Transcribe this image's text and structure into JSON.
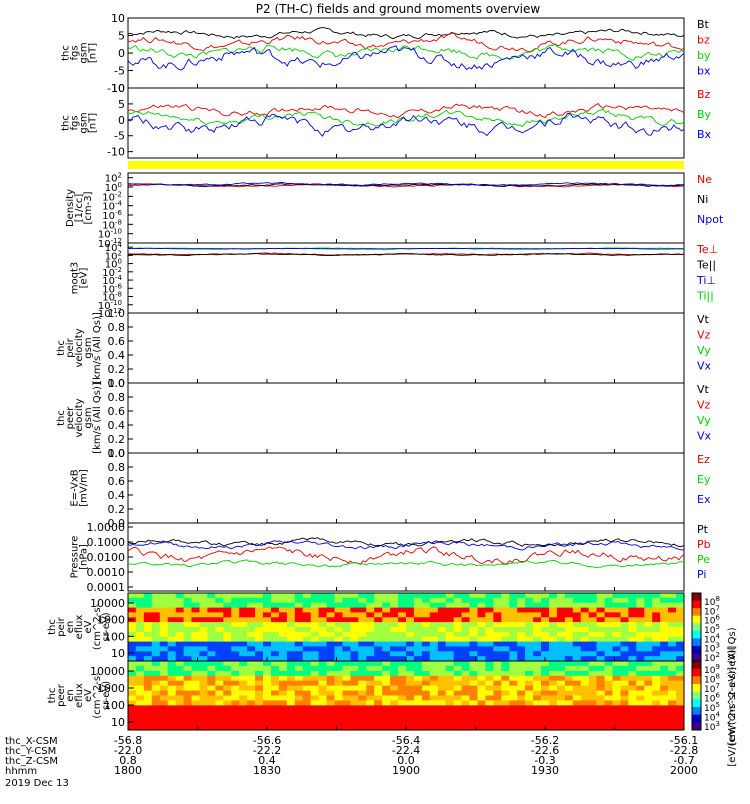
{
  "title": "P2 (TH-C) fields and ground moments overview",
  "colors": {
    "black": "#000000",
    "red": "#e00000",
    "green": "#00d000",
    "blue": "#0000e0",
    "yellow": "#ffff00",
    "axis": "#000000"
  },
  "chart_data": [
    {
      "id": "fgs",
      "type": "line",
      "ylabel": [
        "thc",
        "fgs",
        "gsm",
        "[nT]"
      ],
      "ylim": [
        -10,
        10
      ],
      "yticks": [
        10,
        5,
        0,
        -5,
        -10
      ],
      "legend": [
        {
          "label": "Bt",
          "color": "#000000"
        },
        {
          "label": "bz",
          "color": "#e00000"
        },
        {
          "label": "by",
          "color": "#00d000"
        },
        {
          "label": "bx",
          "color": "#0000e0"
        }
      ],
      "series": [
        {
          "name": "Bt",
          "color": "#000000",
          "base": 5.5,
          "amp": 1.4
        },
        {
          "name": "bz",
          "color": "#e00000",
          "base": 3.0,
          "amp": 2.0
        },
        {
          "name": "by",
          "color": "#00d000",
          "base": 0.5,
          "amp": 2.2
        },
        {
          "name": "bx",
          "color": "#0000e0",
          "base": -1.5,
          "amp": 3.2
        }
      ]
    },
    {
      "id": "fgs_gsm",
      "type": "line",
      "ylabel": [
        "thc",
        "fgs",
        "gsm",
        "[nT]"
      ],
      "ylim": [
        -12,
        10
      ],
      "yticks": [
        10,
        5,
        0,
        -5,
        -10
      ],
      "legend": [
        {
          "label": "Bz",
          "color": "#e00000"
        },
        {
          "label": "By",
          "color": "#00d000"
        },
        {
          "label": "Bx",
          "color": "#0000e0"
        }
      ],
      "series": [
        {
          "name": "Bz",
          "color": "#e00000",
          "base": 3.0,
          "amp": 2.0
        },
        {
          "name": "By",
          "color": "#00d000",
          "base": 0.5,
          "amp": 2.2
        },
        {
          "name": "Bx",
          "color": "#0000e0",
          "base": -1.5,
          "amp": 3.5
        }
      ]
    },
    {
      "id": "density",
      "type": "line",
      "log": true,
      "ylabel": [
        "Density",
        "[1/cc]",
        "[cm-3]"
      ],
      "ylim_exp": [
        -12,
        3
      ],
      "yticks_exp": [
        2,
        0,
        -2,
        -4,
        -6,
        -8,
        -10,
        -12
      ],
      "legend": [
        {
          "label": "Ne",
          "color": "#e00000"
        },
        {
          "label": "Ni",
          "color": "#000000"
        },
        {
          "label": "Npot",
          "color": "#0000e0"
        }
      ],
      "series": [
        {
          "name": "Ne",
          "color": "#e00000",
          "base": 0.3,
          "amp": 0.3
        },
        {
          "name": "Ni",
          "color": "#000000",
          "base": 0.4,
          "amp": 0.3
        },
        {
          "name": "Npot",
          "color": "#0000e0",
          "base": 0.6,
          "amp": 0.3
        }
      ]
    },
    {
      "id": "temp",
      "type": "line",
      "log": true,
      "ylabel": [
        "moqt3",
        "[eV]"
      ],
      "ylim_exp": [
        -12,
        5
      ],
      "yticks_exp": [
        4,
        2,
        0,
        -2,
        -4,
        -6,
        -8,
        -10,
        -12
      ],
      "legend": [
        {
          "label": "Te⊥",
          "color": "#e00000"
        },
        {
          "label": "Te||",
          "color": "#000000"
        },
        {
          "label": "Ti⊥",
          "color": "#0000e0"
        },
        {
          "label": "Ti||",
          "color": "#00d000"
        }
      ],
      "series": [
        {
          "name": "Ti||",
          "color": "#00d000",
          "base": 3.7,
          "amp": 0.1
        },
        {
          "name": "Ti⊥",
          "color": "#0000e0",
          "base": 3.6,
          "amp": 0.1
        },
        {
          "name": "Te⊥",
          "color": "#e00000",
          "base": 2.3,
          "amp": 0.25
        },
        {
          "name": "Te||",
          "color": "#000000",
          "base": 2.2,
          "amp": 0.25
        }
      ]
    },
    {
      "id": "peir_vel",
      "type": "line",
      "ylabel": [
        "thc",
        "peir",
        "velocity",
        "gsm",
        "[km/s (All Qs)]"
      ],
      "ylim": [
        0,
        1
      ],
      "yticks": [
        1.0,
        0.8,
        0.6,
        0.4,
        0.2,
        0.0
      ],
      "legend": [
        {
          "label": "Vt",
          "color": "#000000"
        },
        {
          "label": "Vz",
          "color": "#e00000"
        },
        {
          "label": "Vy",
          "color": "#00d000"
        },
        {
          "label": "Vx",
          "color": "#0000e0"
        }
      ],
      "series": []
    },
    {
      "id": "peer_vel",
      "type": "line",
      "ylabel": [
        "thc",
        "peer",
        "velocity",
        "gsm",
        "[km/s (All Qs)]"
      ],
      "ylim": [
        0,
        1
      ],
      "yticks": [
        1.0,
        0.8,
        0.6,
        0.4,
        0.2,
        0.0
      ],
      "legend": [
        {
          "label": "Vt",
          "color": "#000000"
        },
        {
          "label": "Vz",
          "color": "#e00000"
        },
        {
          "label": "Vy",
          "color": "#00d000"
        },
        {
          "label": "Vx",
          "color": "#0000e0"
        }
      ],
      "series": []
    },
    {
      "id": "efield",
      "type": "line",
      "ylabel": [
        "E=-VxB",
        "[mV/m]"
      ],
      "ylim": [
        0,
        1
      ],
      "yticks": [
        1.0,
        0.8,
        0.6,
        0.4,
        0.2,
        0.0
      ],
      "legend": [
        {
          "label": "Ez",
          "color": "#e00000"
        },
        {
          "label": "Ey",
          "color": "#00d000"
        },
        {
          "label": "Ex",
          "color": "#0000e0"
        }
      ],
      "series": []
    },
    {
      "id": "pressure",
      "type": "line",
      "log": true,
      "ylabel": [
        "Pressure",
        "[nPa]"
      ],
      "ylim_exp": [
        -4,
        0
      ],
      "yticks": [
        "1.0000",
        "0.1000",
        "0.0100",
        "0.0010",
        "0.0001"
      ],
      "legend": [
        {
          "label": "Pt",
          "color": "#000000"
        },
        {
          "label": "Pb",
          "color": "#e00000"
        },
        {
          "label": "Pe",
          "color": "#00d000"
        },
        {
          "label": "Pi",
          "color": "#0000e0"
        }
      ],
      "series": [
        {
          "name": "Pt",
          "color": "#000000",
          "base": -1.15,
          "amp": 0.25
        },
        {
          "name": "Pi",
          "color": "#0000e0",
          "base": -1.3,
          "amp": 0.25
        },
        {
          "name": "Pb",
          "color": "#e00000",
          "base": -1.9,
          "amp": 0.45
        },
        {
          "name": "Pe",
          "color": "#00d000",
          "base": -2.4,
          "amp": 0.2
        }
      ]
    },
    {
      "id": "peir_en",
      "type": "heatmap",
      "ylabel": [
        "thc",
        "peir",
        "en",
        "eflux",
        "eV",
        "(cm^2-s-",
        "sr-eV)"
      ],
      "yticks": [
        "10000",
        "1000",
        "100",
        "10"
      ],
      "cbar_ticks": [
        "10^8",
        "10^7",
        "10^6",
        "10^5",
        "10^4",
        "10^3",
        "10^2"
      ],
      "cbar_label": "[eV/(cm^2-s-sr-eV)] (All Qs)"
    },
    {
      "id": "peer_en",
      "type": "heatmap",
      "ylabel": [
        "thc",
        "peer",
        "en",
        "eflux",
        "eV",
        "(cm^2-s-",
        "sr-eV)"
      ],
      "yticks": [
        "10000",
        "1000",
        "100",
        "10"
      ],
      "cbar_ticks": [
        "10^9",
        "10^8",
        "10^7",
        "10^6",
        "10^5",
        "10^4",
        "10^3"
      ],
      "cbar_label": "[eV/(cm^2-s-sr-eV)]"
    }
  ],
  "xaxis": {
    "row_labels": [
      "thc_X-CSM",
      "thc_Y-CSM",
      "thc_Z-CSM",
      "hhmm",
      "2019 Dec 13"
    ],
    "columns": [
      {
        "x": "-56.8",
        "y": "-22.0",
        "z": "0.8",
        "t": "1800"
      },
      {
        "x": "-56.6",
        "y": "-22.2",
        "z": "0.4",
        "t": "1830"
      },
      {
        "x": "-56.4",
        "y": "-22.4",
        "z": "0.0",
        "t": "1900"
      },
      {
        "x": "-56.2",
        "y": "-22.6",
        "z": "-0.3",
        "t": "1930"
      },
      {
        "x": "-56.1",
        "y": "-22.8",
        "z": "-0.7",
        "t": "2000"
      }
    ]
  }
}
